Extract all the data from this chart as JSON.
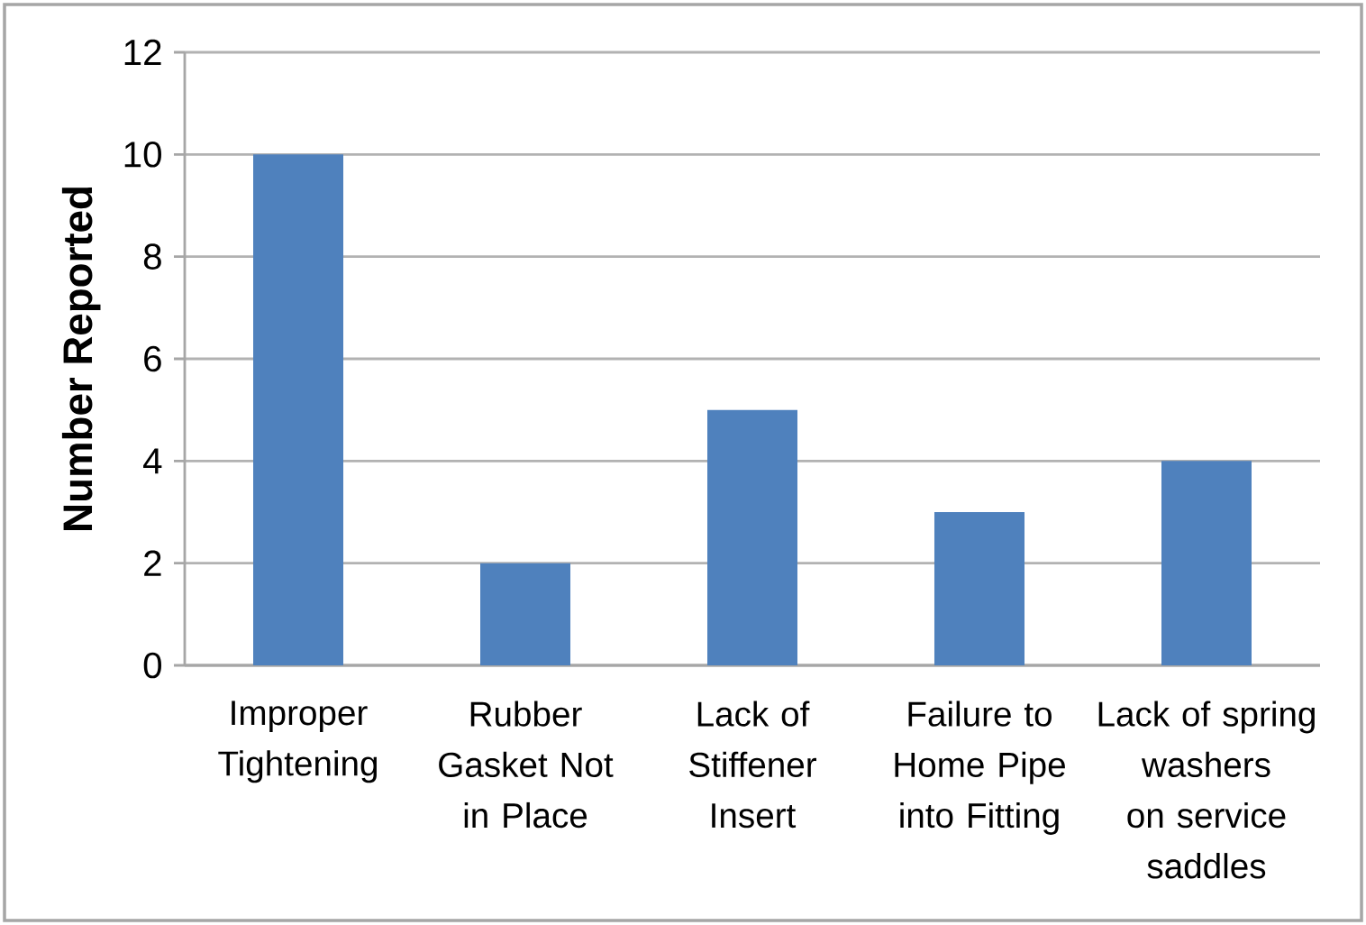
{
  "chart_data": {
    "type": "bar",
    "ylabel": "Number Reported",
    "categories": [
      "Improper Tightening",
      "Rubber Gasket Not in Place",
      "Lack of Stiffener Insert",
      "Failure to Home Pipe into Fitting",
      "Lack of spring washers on service saddles"
    ],
    "values": [
      10,
      2,
      5,
      3,
      4
    ],
    "color": "#4f81bd",
    "ylim": [
      0,
      12
    ],
    "yticks": [
      0,
      2,
      4,
      6,
      8,
      10,
      12
    ],
    "grid": "y"
  }
}
